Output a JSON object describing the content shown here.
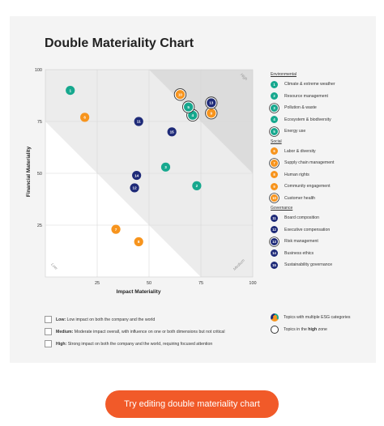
{
  "chart_data": {
    "type": "scatter",
    "title": "Double Materiality Chart",
    "xlabel": "Impact Materiality",
    "ylabel": "Financial Materiality",
    "xlim": [
      0,
      100
    ],
    "ylim": [
      0,
      100
    ],
    "xticks": [
      "25",
      "50",
      "75",
      "100"
    ],
    "yticks": [
      "25",
      "50",
      "75",
      "100"
    ],
    "grid": true,
    "legend_position": "right",
    "zone_labels": {
      "high": "High",
      "medium": "Medium",
      "low": "Low"
    },
    "categories": [
      {
        "name": "Environmental",
        "color": "#16a88e"
      },
      {
        "name": "Social",
        "color": "#f7941d"
      },
      {
        "name": "Governance",
        "color": "#1e2a78"
      }
    ],
    "topics": [
      {
        "id": "1",
        "name": "Climate & extreme weather",
        "category": "Environmental",
        "x": 12,
        "y": 90,
        "multi": false,
        "high": false
      },
      {
        "id": "2",
        "name": "Resource management",
        "category": "Environmental",
        "x": 73,
        "y": 44,
        "multi": false,
        "high": false
      },
      {
        "id": "3",
        "name": "Pollution & waste",
        "category": "Environmental",
        "x": 58,
        "y": 53,
        "multi": false,
        "high": false
      },
      {
        "id": "4",
        "name": "Ecosystem & biodiversity",
        "category": "Environmental",
        "x": 71,
        "y": 78,
        "multi": false,
        "high": true
      },
      {
        "id": "5",
        "name": "Energy use",
        "category": "Environmental",
        "x": 69,
        "y": 82,
        "multi": false,
        "high": true
      },
      {
        "id": "6",
        "name": "Labor & diversity",
        "category": "Social",
        "x": 19,
        "y": 77,
        "multi": false,
        "high": false
      },
      {
        "id": "7",
        "name": "Supply chain management",
        "category": "Social",
        "x": 34,
        "y": 23,
        "multi": false,
        "high": false
      },
      {
        "id": "8",
        "name": "Human rights",
        "category": "Social",
        "x": 45,
        "y": 17,
        "multi": false,
        "high": false
      },
      {
        "id": "9",
        "name": "Community engagement",
        "category": "Social",
        "x": 80,
        "y": 79,
        "multi": false,
        "high": true
      },
      {
        "id": "10",
        "name": "Customer health",
        "category": "Social",
        "x": 65,
        "y": 88,
        "multi": false,
        "high": true
      },
      {
        "id": "11",
        "name": "Board composition",
        "category": "Governance",
        "x": 45,
        "y": 75,
        "multi": false,
        "high": false
      },
      {
        "id": "12",
        "name": "Executive compensation",
        "category": "Governance",
        "x": 43,
        "y": 43,
        "multi": false,
        "high": false
      },
      {
        "id": "13",
        "name": "Risk management",
        "category": "Governance",
        "x": 80,
        "y": 84,
        "multi": false,
        "high": true
      },
      {
        "id": "14",
        "name": "Business ethics",
        "category": "Governance",
        "x": 44,
        "y": 49,
        "multi": false,
        "high": false
      },
      {
        "id": "15",
        "name": "Sustainability governance",
        "category": "Governance",
        "x": 61,
        "y": 70,
        "multi": false,
        "high": false
      }
    ],
    "legend_ring_ids": [
      "3",
      "5",
      "7",
      "10",
      "13"
    ],
    "zone_legend": [
      {
        "level": "Low:",
        "text": " Low impact on both the company and the world"
      },
      {
        "level": "Medium:",
        "text": " Moderate impact overall, with influence on one or both dimensions but not critical"
      },
      {
        "level": "High:",
        "text": " Strong impact on both the company and the world, requiring focused attention"
      }
    ],
    "marker_legend": {
      "multi_label": "Topics with multiple ESG categories",
      "high_prefix": "Topics in the ",
      "high_bold": "high",
      "high_suffix": " zone"
    }
  },
  "cta": {
    "label": "Try editing double materiality chart",
    "color": "#f15a29"
  }
}
